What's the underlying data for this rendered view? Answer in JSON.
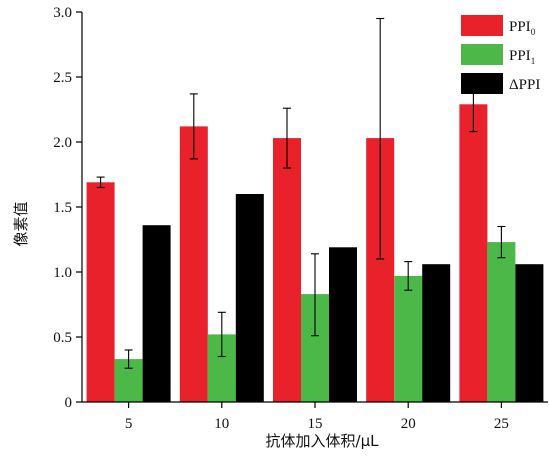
{
  "chart_data": {
    "type": "bar",
    "categories": [
      "5",
      "10",
      "15",
      "20",
      "25"
    ],
    "xlabel": "抗体加入体积/μL",
    "ylabel": "像素值",
    "ylim": [
      0,
      3.0
    ],
    "yticks": [
      "0",
      "0.5",
      "1.0",
      "1.5",
      "2.0",
      "2.5",
      "3.0"
    ],
    "grid": false,
    "legend_position": "top-right",
    "series": [
      {
        "name": "PPI0",
        "legend_main": "PPI",
        "legend_sub": "0",
        "color": "#e8212b",
        "values": [
          1.69,
          2.12,
          2.03,
          2.03,
          2.29
        ],
        "error_low": [
          1.65,
          1.87,
          1.8,
          1.1,
          2.08
        ],
        "error_high": [
          1.73,
          2.37,
          2.26,
          2.95,
          2.5
        ]
      },
      {
        "name": "PPI1",
        "legend_main": "PPI",
        "legend_sub": "1",
        "color": "#4cb848",
        "values": [
          0.33,
          0.52,
          0.83,
          0.97,
          1.23
        ],
        "error_low": [
          0.26,
          0.35,
          0.51,
          0.86,
          1.11
        ],
        "error_high": [
          0.4,
          0.69,
          1.14,
          1.08,
          1.35
        ]
      },
      {
        "name": "ΔPPI",
        "legend_main": "ΔPPI",
        "legend_sub": "",
        "color": "#000000",
        "values": [
          1.36,
          1.6,
          1.19,
          1.06,
          1.06
        ]
      }
    ]
  }
}
